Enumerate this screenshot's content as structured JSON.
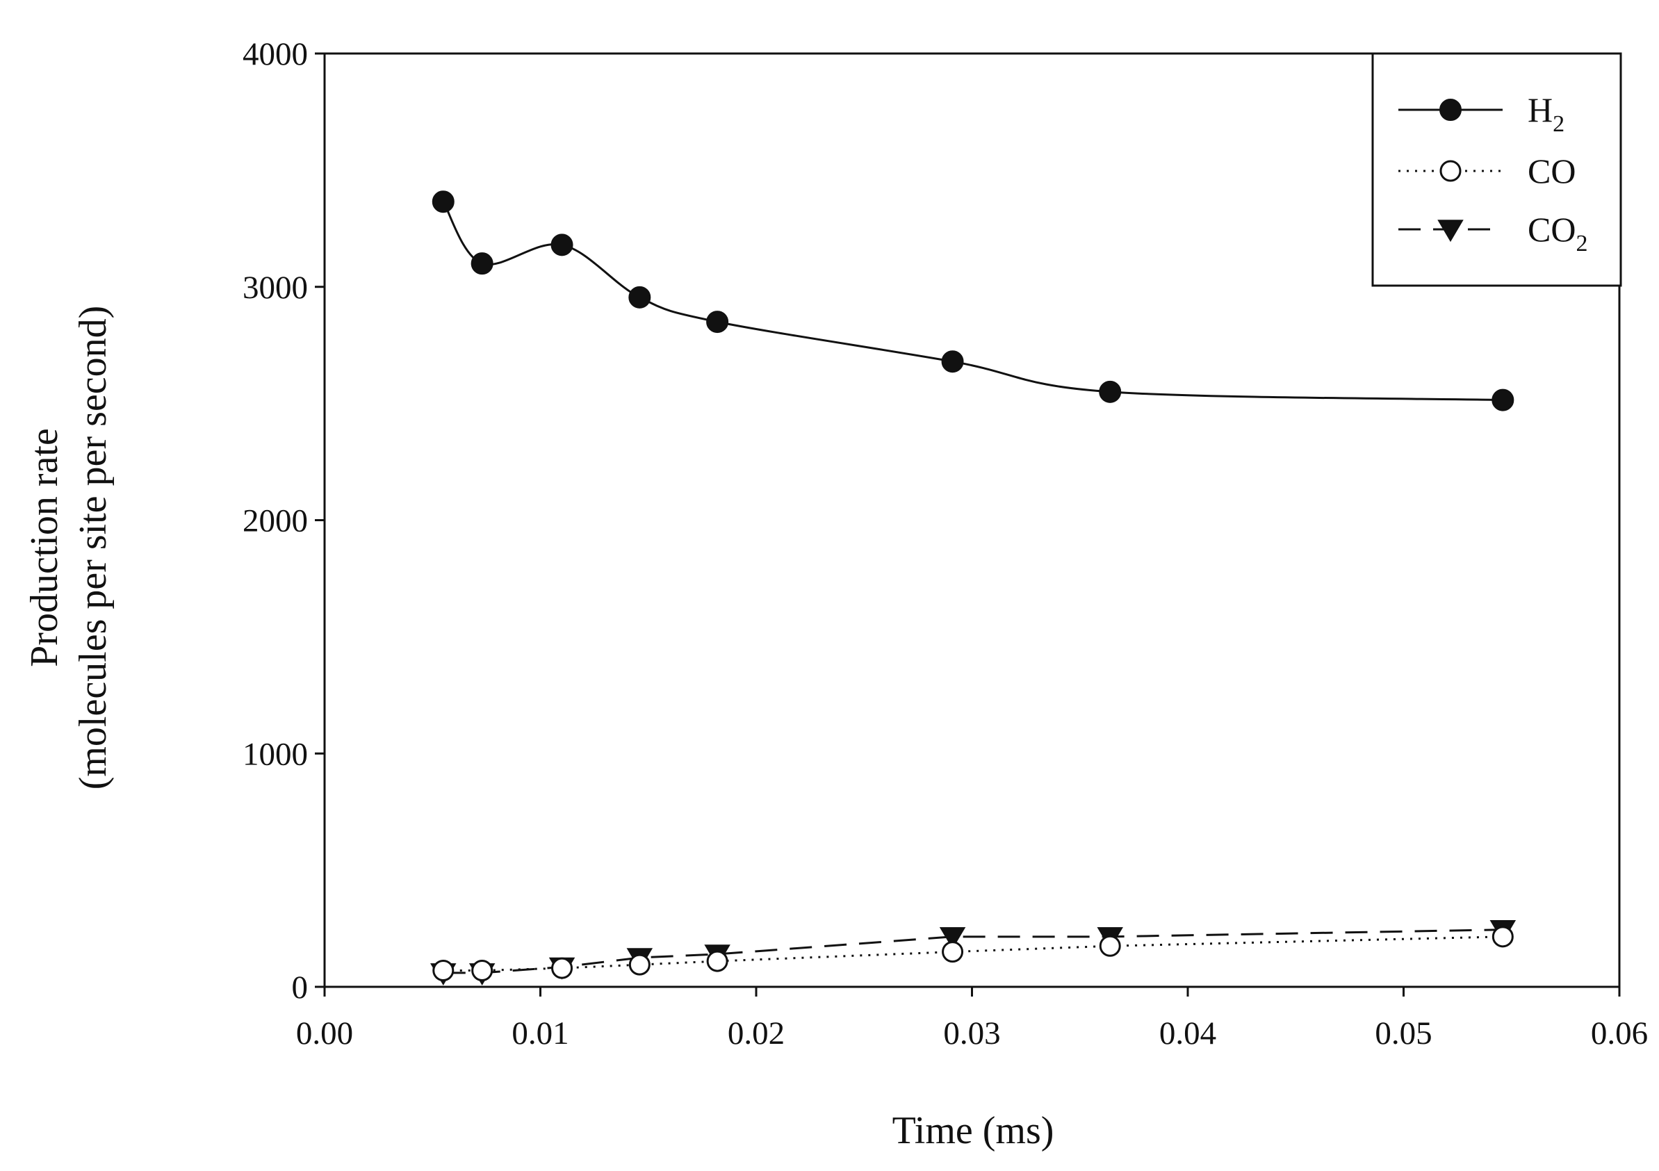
{
  "chart_data": {
    "type": "line",
    "title": "",
    "xlabel": "Time (ms)",
    "ylabel_line1": "Production rate",
    "ylabel_line2": "(molecules per site per second)",
    "xlim": [
      0.0,
      0.06
    ],
    "ylim": [
      0,
      4000
    ],
    "xticks": [
      "0.00",
      "0.01",
      "0.02",
      "0.03",
      "0.04",
      "0.05",
      "0.06"
    ],
    "yticks": [
      "0",
      "1000",
      "2000",
      "3000",
      "4000"
    ],
    "grid": false,
    "legend_position": "top-right",
    "series": [
      {
        "name": "H2",
        "label_main": "H",
        "label_sub": "2",
        "marker": "filled-circle",
        "line_style": "solid",
        "x": [
          0.0055,
          0.0073,
          0.011,
          0.0146,
          0.0182,
          0.0291,
          0.0364,
          0.0546
        ],
        "y": [
          3365,
          3100,
          3180,
          2955,
          2850,
          2680,
          2550,
          2515
        ]
      },
      {
        "name": "CO",
        "label_main": "CO",
        "label_sub": "",
        "marker": "open-circle",
        "line_style": "dotted",
        "x": [
          0.0055,
          0.0073,
          0.011,
          0.0146,
          0.0182,
          0.0291,
          0.0364,
          0.0546
        ],
        "y": [
          70,
          70,
          80,
          95,
          110,
          150,
          175,
          215
        ]
      },
      {
        "name": "CO2",
        "label_main": "CO",
        "label_sub": "2",
        "marker": "filled-triangle-down",
        "line_style": "dashed",
        "x": [
          0.0055,
          0.0073,
          0.011,
          0.0146,
          0.0182,
          0.0291,
          0.0364,
          0.0546
        ],
        "y": [
          60,
          60,
          85,
          125,
          140,
          215,
          215,
          245
        ]
      }
    ]
  }
}
